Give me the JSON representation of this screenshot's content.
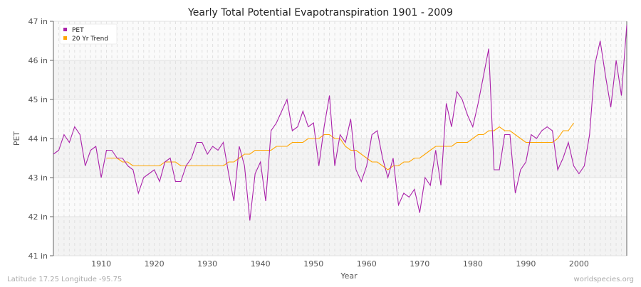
{
  "chart_data": {
    "type": "line",
    "title": "Yearly Total Potential Evapotranspiration 1901 - 2009",
    "xlabel": "Year",
    "ylabel": "PET",
    "xlim": [
      1901,
      2009
    ],
    "ylim": [
      41,
      47
    ],
    "x_ticks": [
      1910,
      1920,
      1930,
      1940,
      1950,
      1960,
      1970,
      1980,
      1990,
      2000
    ],
    "y_ticks": [
      41,
      42,
      43,
      44,
      45,
      46,
      47
    ],
    "y_tick_labels": [
      "41 in",
      "42 in",
      "43 in",
      "44 in",
      "45 in",
      "46 in",
      "47 in"
    ],
    "grid": true,
    "legend_position": "top-left",
    "series": [
      {
        "name": "PET",
        "color": "#aa22aa",
        "x": [
          1901,
          1902,
          1903,
          1904,
          1905,
          1906,
          1907,
          1908,
          1909,
          1910,
          1911,
          1912,
          1913,
          1914,
          1915,
          1916,
          1917,
          1918,
          1919,
          1920,
          1921,
          1922,
          1923,
          1924,
          1925,
          1926,
          1927,
          1928,
          1929,
          1930,
          1931,
          1932,
          1933,
          1934,
          1935,
          1936,
          1937,
          1938,
          1939,
          1940,
          1941,
          1942,
          1943,
          1944,
          1945,
          1946,
          1947,
          1948,
          1949,
          1950,
          1951,
          1952,
          1953,
          1954,
          1955,
          1956,
          1957,
          1958,
          1959,
          1960,
          1961,
          1962,
          1963,
          1964,
          1965,
          1966,
          1967,
          1968,
          1969,
          1970,
          1971,
          1972,
          1973,
          1974,
          1975,
          1976,
          1977,
          1978,
          1979,
          1980,
          1981,
          1982,
          1983,
          1984,
          1985,
          1986,
          1987,
          1988,
          1989,
          1990,
          1991,
          1992,
          1993,
          1994,
          1995,
          1996,
          1997,
          1998,
          1999,
          2000,
          2001,
          2002,
          2003,
          2004,
          2005,
          2006,
          2007,
          2008,
          2009
        ],
        "values": [
          43.6,
          43.7,
          44.1,
          43.9,
          44.3,
          44.1,
          43.3,
          43.7,
          43.8,
          43.0,
          43.7,
          43.7,
          43.5,
          43.5,
          43.3,
          43.2,
          42.6,
          43.0,
          43.1,
          43.2,
          42.9,
          43.4,
          43.5,
          42.9,
          42.9,
          43.3,
          43.5,
          43.9,
          43.9,
          43.6,
          43.8,
          43.7,
          43.9,
          43.1,
          42.4,
          43.8,
          43.3,
          41.9,
          43.1,
          43.4,
          42.4,
          44.2,
          44.4,
          44.7,
          45.0,
          44.2,
          44.3,
          44.7,
          44.3,
          44.4,
          43.3,
          44.3,
          45.1,
          43.3,
          44.1,
          43.9,
          44.5,
          43.2,
          42.9,
          43.3,
          44.1,
          44.2,
          43.5,
          43.0,
          43.5,
          42.3,
          42.6,
          42.5,
          42.7,
          42.1,
          43.0,
          42.8,
          43.7,
          42.8,
          44.9,
          44.3,
          45.2,
          45.0,
          44.6,
          44.3,
          44.9,
          45.6,
          46.3,
          43.2,
          43.2,
          44.1,
          44.1,
          42.6,
          43.2,
          43.4,
          44.1,
          44.0,
          44.2,
          44.3,
          44.2,
          43.2,
          43.5,
          43.9,
          43.3,
          43.1,
          43.3,
          44.1,
          45.9,
          46.5,
          45.6,
          44.8,
          46.0,
          45.1,
          46.9
        ]
      },
      {
        "name": "20 Yr Trend",
        "color": "#ffa500",
        "x": [
          1911,
          1912,
          1913,
          1914,
          1915,
          1916,
          1917,
          1918,
          1919,
          1920,
          1921,
          1922,
          1923,
          1924,
          1925,
          1926,
          1927,
          1928,
          1929,
          1930,
          1931,
          1932,
          1933,
          1934,
          1935,
          1936,
          1937,
          1938,
          1939,
          1940,
          1941,
          1942,
          1943,
          1944,
          1945,
          1946,
          1947,
          1948,
          1949,
          1950,
          1951,
          1952,
          1953,
          1954,
          1955,
          1956,
          1957,
          1958,
          1959,
          1960,
          1961,
          1962,
          1963,
          1964,
          1965,
          1966,
          1967,
          1968,
          1969,
          1970,
          1971,
          1972,
          1973,
          1974,
          1975,
          1976,
          1977,
          1978,
          1979,
          1980,
          1981,
          1982,
          1983,
          1984,
          1985,
          1986,
          1987,
          1988,
          1989,
          1990,
          1991,
          1992,
          1993,
          1994,
          1995,
          1996,
          1997,
          1998,
          1999
        ],
        "values": [
          43.5,
          43.5,
          43.5,
          43.4,
          43.4,
          43.3,
          43.3,
          43.3,
          43.3,
          43.3,
          43.3,
          43.4,
          43.4,
          43.4,
          43.3,
          43.3,
          43.3,
          43.3,
          43.3,
          43.3,
          43.3,
          43.3,
          43.3,
          43.4,
          43.4,
          43.5,
          43.6,
          43.6,
          43.7,
          43.7,
          43.7,
          43.7,
          43.8,
          43.8,
          43.8,
          43.9,
          43.9,
          43.9,
          44.0,
          44.0,
          44.0,
          44.1,
          44.1,
          44.0,
          44.0,
          43.8,
          43.7,
          43.7,
          43.6,
          43.5,
          43.4,
          43.4,
          43.3,
          43.2,
          43.3,
          43.3,
          43.4,
          43.4,
          43.5,
          43.5,
          43.6,
          43.7,
          43.8,
          43.8,
          43.8,
          43.8,
          43.9,
          43.9,
          43.9,
          44.0,
          44.1,
          44.1,
          44.2,
          44.2,
          44.3,
          44.2,
          44.2,
          44.1,
          44.0,
          43.9,
          43.9,
          43.9,
          43.9,
          43.9,
          43.9,
          44.0,
          44.2,
          44.2,
          44.4
        ]
      }
    ]
  },
  "footer": {
    "location": "Latitude 17.25 Longitude -95.75",
    "source": "worldspecies.org"
  }
}
